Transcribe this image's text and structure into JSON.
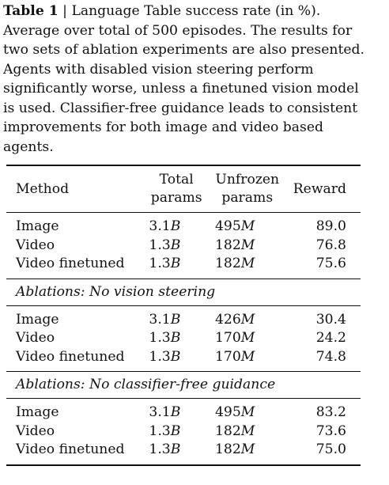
{
  "caption": {
    "label": "Table 1",
    "separator": " | ",
    "text": "Language Table success rate (in %). Average over total of 500 episodes. The results for two sets of ablation experiments are also presented. Agents with disabled vision steering perform significantly worse, unless a finetuned vision model is used. Classifier-free guidance leads to consistent improvements for both image and video based agents."
  },
  "table": {
    "headers": {
      "method": "Method",
      "total_line1": "Total",
      "total_line2": "params",
      "unfrozen_line1": "Unfrozen",
      "unfrozen_line2": "params",
      "reward": "Reward"
    },
    "groups": [
      {
        "title": "",
        "rows": [
          {
            "method": "Image",
            "total": "3.1",
            "total_unit": "B",
            "unfrozen": "495",
            "unfrozen_unit": "M",
            "reward": "89.0"
          },
          {
            "method": "Video",
            "total": "1.3",
            "total_unit": "B",
            "unfrozen": "182",
            "unfrozen_unit": "M",
            "reward": "76.8"
          },
          {
            "method": "Video finetuned",
            "total": "1.3",
            "total_unit": "B",
            "unfrozen": "182",
            "unfrozen_unit": "M",
            "reward": "75.6"
          }
        ]
      },
      {
        "title": "Ablations: No vision steering",
        "rows": [
          {
            "method": "Image",
            "total": "3.1",
            "total_unit": "B",
            "unfrozen": "426",
            "unfrozen_unit": "M",
            "reward": "30.4"
          },
          {
            "method": "Video",
            "total": "1.3",
            "total_unit": "B",
            "unfrozen": "170",
            "unfrozen_unit": "M",
            "reward": "24.2"
          },
          {
            "method": "Video finetuned",
            "total": "1.3",
            "total_unit": "B",
            "unfrozen": "170",
            "unfrozen_unit": "M",
            "reward": "74.8"
          }
        ]
      },
      {
        "title": "Ablations: No classifier-free guidance",
        "rows": [
          {
            "method": "Image",
            "total": "3.1",
            "total_unit": "B",
            "unfrozen": "495",
            "unfrozen_unit": "M",
            "reward": "83.2"
          },
          {
            "method": "Video",
            "total": "1.3",
            "total_unit": "B",
            "unfrozen": "182",
            "unfrozen_unit": "M",
            "reward": "73.6"
          },
          {
            "method": "Video finetuned",
            "total": "1.3",
            "total_unit": "B",
            "unfrozen": "182",
            "unfrozen_unit": "M",
            "reward": "75.0"
          }
        ]
      }
    ]
  }
}
